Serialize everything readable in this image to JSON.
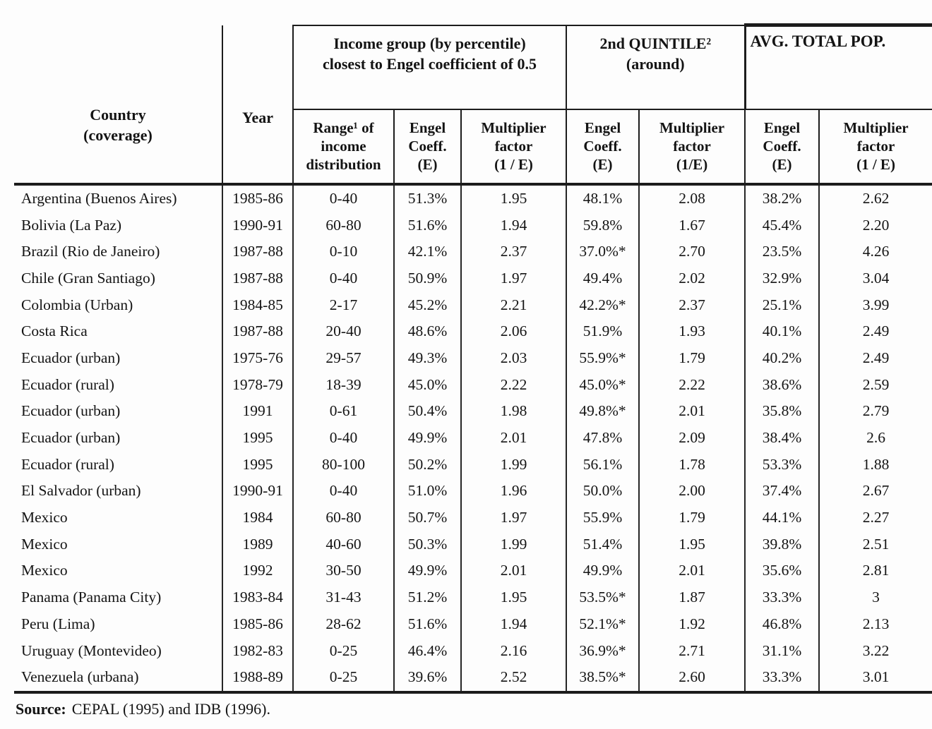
{
  "table": {
    "header": {
      "country": "Country\n(coverage)",
      "year": "Year",
      "group_income": "Income group (by percentile)\nclosest to Engel coefficient of 0.5",
      "group_quintile": "2nd QUINTILE²\n(around)",
      "group_avg": "AVG. TOTAL POP.",
      "sub": [
        "Range¹ of\nincome\ndistribution",
        "Engel\nCoeff.\n(E)",
        "Multiplier\nfactor\n(1 / E)",
        "Engel\nCoeff.\n(E)",
        "Multiplier\nfactor\n(1/E)",
        "Engel\nCoeff.\n(E)",
        "Multiplier\nfactor\n(1 / E)"
      ]
    },
    "rows": [
      {
        "country": "Argentina (Buenos Aires)",
        "year": "1985-86",
        "range": "0-40",
        "engel1": "51.3%",
        "mult1": "1.95",
        "engel2": "48.1%",
        "mult2": "2.08",
        "engel3": "38.2%",
        "mult3": "2.62"
      },
      {
        "country": "Bolivia (La Paz)",
        "year": "1990-91",
        "range": "60-80",
        "engel1": "51.6%",
        "mult1": "1.94",
        "engel2": "59.8%",
        "mult2": "1.67",
        "engel3": "45.4%",
        "mult3": "2.20"
      },
      {
        "country": "Brazil (Rio de Janeiro)",
        "year": "1987-88",
        "range": "0-10",
        "engel1": "42.1%",
        "mult1": "2.37",
        "engel2": "37.0%*",
        "mult2": "2.70",
        "engel3": "23.5%",
        "mult3": "4.26"
      },
      {
        "country": "Chile (Gran Santiago)",
        "year": "1987-88",
        "range": "0-40",
        "engel1": "50.9%",
        "mult1": "1.97",
        "engel2": "49.4%",
        "mult2": "2.02",
        "engel3": "32.9%",
        "mult3": "3.04"
      },
      {
        "country": "Colombia (Urban)",
        "year": "1984-85",
        "range": "2-17",
        "engel1": "45.2%",
        "mult1": "2.21",
        "engel2": "42.2%*",
        "mult2": "2.37",
        "engel3": "25.1%",
        "mult3": "3.99"
      },
      {
        "country": "Costa Rica",
        "year": "1987-88",
        "range": "20-40",
        "engel1": "48.6%",
        "mult1": "2.06",
        "engel2": "51.9%",
        "mult2": "1.93",
        "engel3": "40.1%",
        "mult3": "2.49"
      },
      {
        "country": "Ecuador (urban)",
        "year": "1975-76",
        "range": "29-57",
        "engel1": "49.3%",
        "mult1": "2.03",
        "engel2": "55.9%*",
        "mult2": "1.79",
        "engel3": "40.2%",
        "mult3": "2.49"
      },
      {
        "country": "Ecuador (rural)",
        "year": "1978-79",
        "range": "18-39",
        "engel1": "45.0%",
        "mult1": "2.22",
        "engel2": "45.0%*",
        "mult2": "2.22",
        "engel3": "38.6%",
        "mult3": "2.59"
      },
      {
        "country": "Ecuador (urban)",
        "year": "1991",
        "range": "0-61",
        "engel1": "50.4%",
        "mult1": "1.98",
        "engel2": "49.8%*",
        "mult2": "2.01",
        "engel3": "35.8%",
        "mult3": "2.79"
      },
      {
        "country": "Ecuador (urban)",
        "year": "1995",
        "range": "0-40",
        "engel1": "49.9%",
        "mult1": "2.01",
        "engel2": "47.8%",
        "mult2": "2.09",
        "engel3": "38.4%",
        "mult3": "2.6"
      },
      {
        "country": "Ecuador (rural)",
        "year": "1995",
        "range": "80-100",
        "engel1": "50.2%",
        "mult1": "1.99",
        "engel2": "56.1%",
        "mult2": "1.78",
        "engel3": "53.3%",
        "mult3": "1.88"
      },
      {
        "country": "El Salvador (urban)",
        "year": "1990-91",
        "range": "0-40",
        "engel1": "51.0%",
        "mult1": "1.96",
        "engel2": "50.0%",
        "mult2": "2.00",
        "engel3": "37.4%",
        "mult3": "2.67"
      },
      {
        "country": "Mexico",
        "year": "1984",
        "range": "60-80",
        "engel1": "50.7%",
        "mult1": "1.97",
        "engel2": "55.9%",
        "mult2": "1.79",
        "engel3": "44.1%",
        "mult3": "2.27"
      },
      {
        "country": "Mexico",
        "year": "1989",
        "range": "40-60",
        "engel1": "50.3%",
        "mult1": "1.99",
        "engel2": "51.4%",
        "mult2": "1.95",
        "engel3": "39.8%",
        "mult3": "2.51"
      },
      {
        "country": "Mexico",
        "year": "1992",
        "range": "30-50",
        "engel1": "49.9%",
        "mult1": "2.01",
        "engel2": "49.9%",
        "mult2": "2.01",
        "engel3": "35.6%",
        "mult3": "2.81"
      },
      {
        "country": "Panama (Panama City)",
        "year": "1983-84",
        "range": "31-43",
        "engel1": "51.2%",
        "mult1": "1.95",
        "engel2": "53.5%*",
        "mult2": "1.87",
        "engel3": "33.3%",
        "mult3": "3"
      },
      {
        "country": "Peru (Lima)",
        "year": "1985-86",
        "range": "28-62",
        "engel1": "51.6%",
        "mult1": "1.94",
        "engel2": "52.1%*",
        "mult2": "1.92",
        "engel3": "46.8%",
        "mult3": "2.13"
      },
      {
        "country": "Uruguay (Montevideo)",
        "year": "1982-83",
        "range": "0-25",
        "engel1": "46.4%",
        "mult1": "2.16",
        "engel2": "36.9%*",
        "mult2": "2.71",
        "engel3": "31.1%",
        "mult3": "3.22"
      },
      {
        "country": "Venezuela (urbana)",
        "year": "1988-89",
        "range": "0-25",
        "engel1": "39.6%",
        "mult1": "2.52",
        "engel2": "38.5%*",
        "mult2": "2.60",
        "engel3": "33.3%",
        "mult3": "3.01"
      }
    ]
  },
  "source": {
    "label": "Source:",
    "text": "CEPAL (1995) and IDB (1996)."
  }
}
